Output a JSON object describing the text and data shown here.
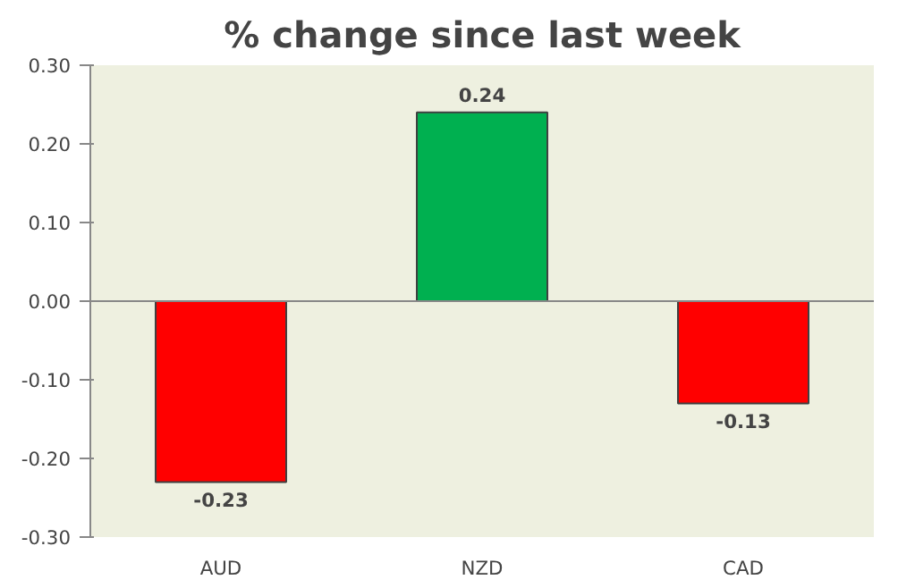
{
  "chart_data": {
    "type": "bar",
    "title": "% change since last week",
    "categories": [
      "AUD",
      "NZD",
      "CAD"
    ],
    "values": [
      -0.23,
      0.24,
      -0.13
    ],
    "colors": [
      "#ff0000",
      "#00b050",
      "#ff0000"
    ],
    "ylim": [
      -0.3,
      0.3
    ],
    "yticks": [
      {
        "value": -0.3,
        "label": "-0.30"
      },
      {
        "value": -0.2,
        "label": "-0.20"
      },
      {
        "value": -0.1,
        "label": "-0.10"
      },
      {
        "value": 0,
        "label": "0.00"
      },
      {
        "value": 0.1,
        "label": "0.10"
      },
      {
        "value": 0.2,
        "label": "0.20"
      },
      {
        "value": 0.3,
        "label": "0.30"
      }
    ],
    "data_labels": true
  }
}
